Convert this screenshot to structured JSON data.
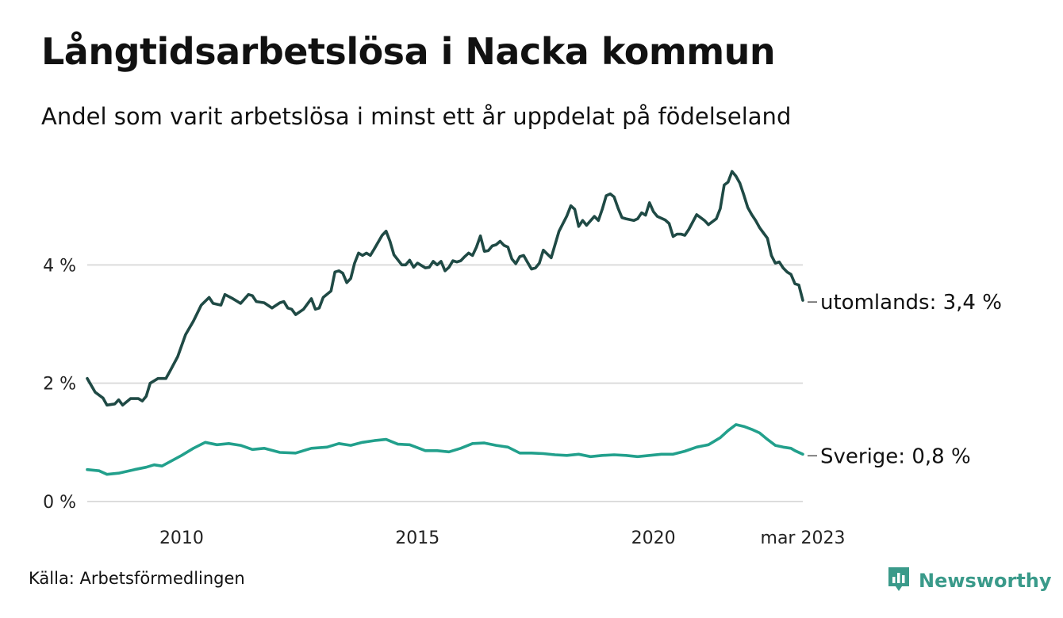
{
  "title": "Långtidsarbetslösa i Nacka kommun",
  "subtitle": "Andel som varit arbetslösa i minst ett år uppdelat på födelseland",
  "source": "Källa: Arbetsförmedlingen",
  "brand": {
    "name": "Newsworthy",
    "icon": "bar-chart-speech-bubble-icon",
    "color": "#3a9a8a"
  },
  "chart_data": {
    "type": "line",
    "title": "Långtidsarbetslösa i Nacka kommun",
    "subtitle": "Andel som varit arbetslösa i minst ett år uppdelat på födelseland",
    "x_start": "2008-01",
    "x_end": "2023-03",
    "ylim": [
      0,
      6
    ],
    "y_ticks": [
      0,
      2,
      4
    ],
    "y_tick_labels": [
      "0 %",
      "2 %",
      "4 %"
    ],
    "x_ticks": [
      "2010-01",
      "2015-01",
      "2020-01",
      "2023-03"
    ],
    "x_tick_labels": [
      "2010",
      "2015",
      "2020",
      "mar 2023"
    ],
    "grid": true,
    "legend": "direct labels at line ends",
    "series": [
      {
        "name": "utomlands",
        "end_label": "utomlands: 3,4 %",
        "color": "#1f4a45",
        "points": [
          [
            "2008-01",
            2.08
          ],
          [
            "2008-03",
            1.85
          ],
          [
            "2008-05",
            1.75
          ],
          [
            "2008-06",
            1.63
          ],
          [
            "2008-08",
            1.65
          ],
          [
            "2008-09",
            1.72
          ],
          [
            "2008-10",
            1.63
          ],
          [
            "2008-12",
            1.74
          ],
          [
            "2009-02",
            1.74
          ],
          [
            "2009-03",
            1.7
          ],
          [
            "2009-04",
            1.78
          ],
          [
            "2009-05",
            2.0
          ],
          [
            "2009-07",
            2.08
          ],
          [
            "2009-09",
            2.08
          ],
          [
            "2009-10",
            2.2
          ],
          [
            "2009-12",
            2.45
          ],
          [
            "2010-02",
            2.82
          ],
          [
            "2010-04",
            3.05
          ],
          [
            "2010-06",
            3.32
          ],
          [
            "2010-08",
            3.45
          ],
          [
            "2010-09",
            3.35
          ],
          [
            "2010-11",
            3.32
          ],
          [
            "2010-12",
            3.5
          ],
          [
            "2011-02",
            3.43
          ],
          [
            "2011-04",
            3.35
          ],
          [
            "2011-06",
            3.5
          ],
          [
            "2011-07",
            3.48
          ],
          [
            "2011-08",
            3.38
          ],
          [
            "2011-10",
            3.36
          ],
          [
            "2011-12",
            3.27
          ],
          [
            "2012-02",
            3.36
          ],
          [
            "2012-03",
            3.38
          ],
          [
            "2012-04",
            3.27
          ],
          [
            "2012-05",
            3.25
          ],
          [
            "2012-06",
            3.16
          ],
          [
            "2012-08",
            3.25
          ],
          [
            "2012-10",
            3.43
          ],
          [
            "2012-11",
            3.25
          ],
          [
            "2012-12",
            3.27
          ],
          [
            "2013-01",
            3.45
          ],
          [
            "2013-03",
            3.56
          ],
          [
            "2013-04",
            3.88
          ],
          [
            "2013-05",
            3.9
          ],
          [
            "2013-06",
            3.86
          ],
          [
            "2013-07",
            3.7
          ],
          [
            "2013-08",
            3.77
          ],
          [
            "2013-09",
            4.03
          ],
          [
            "2013-10",
            4.2
          ],
          [
            "2013-11",
            4.16
          ],
          [
            "2013-12",
            4.2
          ],
          [
            "2014-01",
            4.16
          ],
          [
            "2014-02",
            4.27
          ],
          [
            "2014-04",
            4.5
          ],
          [
            "2014-05",
            4.57
          ],
          [
            "2014-06",
            4.4
          ],
          [
            "2014-07",
            4.17
          ],
          [
            "2014-09",
            4.0
          ],
          [
            "2014-10",
            4.0
          ],
          [
            "2014-11",
            4.08
          ],
          [
            "2014-12",
            3.96
          ],
          [
            "2015-01",
            4.03
          ],
          [
            "2015-03",
            3.95
          ],
          [
            "2015-04",
            3.96
          ],
          [
            "2015-05",
            4.06
          ],
          [
            "2015-06",
            4.0
          ],
          [
            "2015-07",
            4.06
          ],
          [
            "2015-08",
            3.9
          ],
          [
            "2015-09",
            3.96
          ],
          [
            "2015-10",
            4.07
          ],
          [
            "2015-11",
            4.05
          ],
          [
            "2015-12",
            4.07
          ],
          [
            "2016-01",
            4.14
          ],
          [
            "2016-02",
            4.2
          ],
          [
            "2016-03",
            4.16
          ],
          [
            "2016-04",
            4.3
          ],
          [
            "2016-05",
            4.49
          ],
          [
            "2016-06",
            4.23
          ],
          [
            "2016-07",
            4.24
          ],
          [
            "2016-08",
            4.32
          ],
          [
            "2016-09",
            4.34
          ],
          [
            "2016-10",
            4.4
          ],
          [
            "2016-11",
            4.33
          ],
          [
            "2016-12",
            4.3
          ],
          [
            "2017-01",
            4.1
          ],
          [
            "2017-02",
            4.02
          ],
          [
            "2017-03",
            4.14
          ],
          [
            "2017-04",
            4.16
          ],
          [
            "2017-05",
            4.04
          ],
          [
            "2017-06",
            3.93
          ],
          [
            "2017-07",
            3.95
          ],
          [
            "2017-08",
            4.03
          ],
          [
            "2017-09",
            4.25
          ],
          [
            "2017-11",
            4.12
          ],
          [
            "2018-01",
            4.57
          ],
          [
            "2018-03",
            4.83
          ],
          [
            "2018-04",
            5.0
          ],
          [
            "2018-05",
            4.94
          ],
          [
            "2018-06",
            4.65
          ],
          [
            "2018-07",
            4.75
          ],
          [
            "2018-08",
            4.67
          ],
          [
            "2018-10",
            4.82
          ],
          [
            "2018-11",
            4.75
          ],
          [
            "2018-12",
            4.94
          ],
          [
            "2019-01",
            5.17
          ],
          [
            "2019-02",
            5.2
          ],
          [
            "2019-03",
            5.15
          ],
          [
            "2019-04",
            4.96
          ],
          [
            "2019-05",
            4.8
          ],
          [
            "2019-06",
            4.78
          ],
          [
            "2019-08",
            4.75
          ],
          [
            "2019-09",
            4.78
          ],
          [
            "2019-10",
            4.88
          ],
          [
            "2019-11",
            4.84
          ],
          [
            "2019-12",
            5.05
          ],
          [
            "2020-01",
            4.9
          ],
          [
            "2020-02",
            4.82
          ],
          [
            "2020-04",
            4.76
          ],
          [
            "2020-05",
            4.7
          ],
          [
            "2020-06",
            4.48
          ],
          [
            "2020-07",
            4.52
          ],
          [
            "2020-08",
            4.52
          ],
          [
            "2020-09",
            4.5
          ],
          [
            "2020-10",
            4.6
          ],
          [
            "2020-12",
            4.85
          ],
          [
            "2021-01",
            4.8
          ],
          [
            "2021-02",
            4.75
          ],
          [
            "2021-03",
            4.68
          ],
          [
            "2021-05",
            4.78
          ],
          [
            "2021-06",
            4.95
          ],
          [
            "2021-07",
            5.35
          ],
          [
            "2021-08",
            5.4
          ],
          [
            "2021-09",
            5.58
          ],
          [
            "2021-10",
            5.5
          ],
          [
            "2021-11",
            5.38
          ],
          [
            "2021-12",
            5.18
          ],
          [
            "2022-01",
            4.97
          ],
          [
            "2022-02",
            4.85
          ],
          [
            "2022-03",
            4.75
          ],
          [
            "2022-04",
            4.63
          ],
          [
            "2022-05",
            4.54
          ],
          [
            "2022-06",
            4.45
          ],
          [
            "2022-07",
            4.16
          ],
          [
            "2022-08",
            4.03
          ],
          [
            "2022-09",
            4.05
          ],
          [
            "2022-10",
            3.95
          ],
          [
            "2022-11",
            3.88
          ],
          [
            "2022-12",
            3.84
          ],
          [
            "2023-01",
            3.68
          ],
          [
            "2023-02",
            3.66
          ],
          [
            "2023-03",
            3.4
          ]
        ]
      },
      {
        "name": "Sverige",
        "end_label": "Sverige: 0,8 %",
        "color": "#22a08c",
        "points": [
          [
            "2008-01",
            0.54
          ],
          [
            "2008-04",
            0.52
          ],
          [
            "2008-06",
            0.46
          ],
          [
            "2008-09",
            0.48
          ],
          [
            "2009-01",
            0.54
          ],
          [
            "2009-04",
            0.58
          ],
          [
            "2009-06",
            0.62
          ],
          [
            "2009-08",
            0.6
          ],
          [
            "2010-01",
            0.78
          ],
          [
            "2010-04",
            0.9
          ],
          [
            "2010-07",
            1.0
          ],
          [
            "2010-10",
            0.96
          ],
          [
            "2011-01",
            0.98
          ],
          [
            "2011-04",
            0.95
          ],
          [
            "2011-07",
            0.88
          ],
          [
            "2011-10",
            0.9
          ],
          [
            "2012-02",
            0.83
          ],
          [
            "2012-06",
            0.82
          ],
          [
            "2012-10",
            0.9
          ],
          [
            "2013-02",
            0.92
          ],
          [
            "2013-05",
            0.98
          ],
          [
            "2013-08",
            0.95
          ],
          [
            "2013-11",
            1.0
          ],
          [
            "2014-02",
            1.03
          ],
          [
            "2014-05",
            1.05
          ],
          [
            "2014-08",
            0.97
          ],
          [
            "2014-11",
            0.96
          ],
          [
            "2015-03",
            0.86
          ],
          [
            "2015-06",
            0.86
          ],
          [
            "2015-09",
            0.84
          ],
          [
            "2015-12",
            0.9
          ],
          [
            "2016-03",
            0.98
          ],
          [
            "2016-06",
            0.99
          ],
          [
            "2016-09",
            0.95
          ],
          [
            "2016-12",
            0.92
          ],
          [
            "2017-03",
            0.82
          ],
          [
            "2017-06",
            0.82
          ],
          [
            "2017-09",
            0.81
          ],
          [
            "2017-12",
            0.79
          ],
          [
            "2018-03",
            0.78
          ],
          [
            "2018-06",
            0.8
          ],
          [
            "2018-09",
            0.76
          ],
          [
            "2018-12",
            0.78
          ],
          [
            "2019-03",
            0.79
          ],
          [
            "2019-06",
            0.78
          ],
          [
            "2019-09",
            0.76
          ],
          [
            "2019-12",
            0.78
          ],
          [
            "2020-03",
            0.8
          ],
          [
            "2020-06",
            0.8
          ],
          [
            "2020-09",
            0.85
          ],
          [
            "2020-12",
            0.92
          ],
          [
            "2021-03",
            0.96
          ],
          [
            "2021-06",
            1.08
          ],
          [
            "2021-08",
            1.2
          ],
          [
            "2021-10",
            1.3
          ],
          [
            "2021-12",
            1.27
          ],
          [
            "2022-02",
            1.22
          ],
          [
            "2022-04",
            1.16
          ],
          [
            "2022-06",
            1.05
          ],
          [
            "2022-08",
            0.95
          ],
          [
            "2022-10",
            0.92
          ],
          [
            "2022-12",
            0.9
          ],
          [
            "2023-01",
            0.86
          ],
          [
            "2023-03",
            0.8
          ]
        ]
      }
    ]
  }
}
